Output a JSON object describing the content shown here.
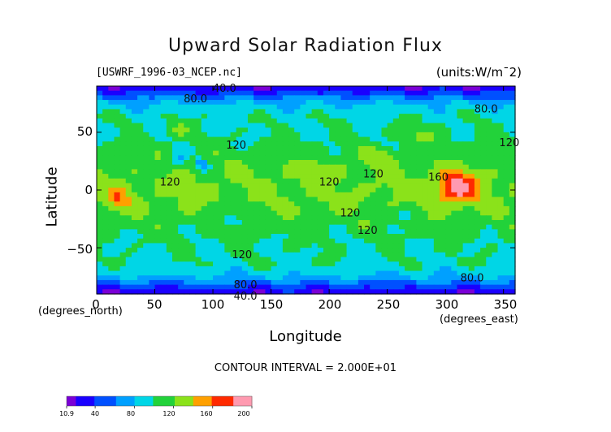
{
  "chart_data": {
    "type": "heatmap",
    "title": "Upward Solar Radiation Flux",
    "file_label": "[USWRF_1996-03_NCEP.nc]",
    "units_label": "(units:W/m¯2)",
    "xlabel": "Longitude",
    "ylabel": "Latitude",
    "x_unit_label": "(degrees_east)",
    "y_unit_label": "(degrees_north)",
    "xlim": [
      0,
      360
    ],
    "ylim": [
      -90,
      90
    ],
    "x_ticks": [
      "0",
      "50",
      "100",
      "150",
      "200",
      "250",
      "300",
      "350"
    ],
    "y_ticks": [
      "50",
      "0",
      "−50"
    ],
    "contour_interval_text": "CONTOUR INTERVAL = 2.000E+01",
    "contour_labels": [
      {
        "text": "40.0",
        "lon": 110,
        "lat": 85
      },
      {
        "text": "80.0",
        "lon": 85,
        "lat": 76
      },
      {
        "text": "80.0",
        "lon": 335,
        "lat": 67
      },
      {
        "text": "120",
        "lon": 120,
        "lat": 36
      },
      {
        "text": "120",
        "lon": 355,
        "lat": 38
      },
      {
        "text": "120",
        "lon": 63,
        "lat": 4
      },
      {
        "text": "120",
        "lon": 200,
        "lat": 4
      },
      {
        "text": "120",
        "lon": 238,
        "lat": 11
      },
      {
        "text": "160",
        "lon": 294,
        "lat": 8
      },
      {
        "text": "120",
        "lon": 218,
        "lat": -23
      },
      {
        "text": "120",
        "lon": 233,
        "lat": -38
      },
      {
        "text": "120",
        "lon": 125,
        "lat": -59
      },
      {
        "text": "80.0",
        "lon": 128,
        "lat": -85
      },
      {
        "text": "80.0",
        "lon": 323,
        "lat": -79
      },
      {
        "text": "40.0",
        "lon": 128,
        "lat": -95
      }
    ],
    "colorbar": {
      "min": 10.9,
      "max": 200,
      "tick_labels": [
        "10.9",
        "40",
        "80",
        "120",
        "160",
        "200"
      ],
      "tick_values": [
        10.9,
        40,
        80,
        120,
        160,
        200
      ],
      "colors": [
        "#7a00d6",
        "#1a00ff",
        "#00a0ff",
        "#00e5b0",
        "#23d23a",
        "#9be21a",
        "#ffff2a",
        "#ffa000",
        "#ff2a00",
        "#ff9ab0"
      ]
    }
  }
}
